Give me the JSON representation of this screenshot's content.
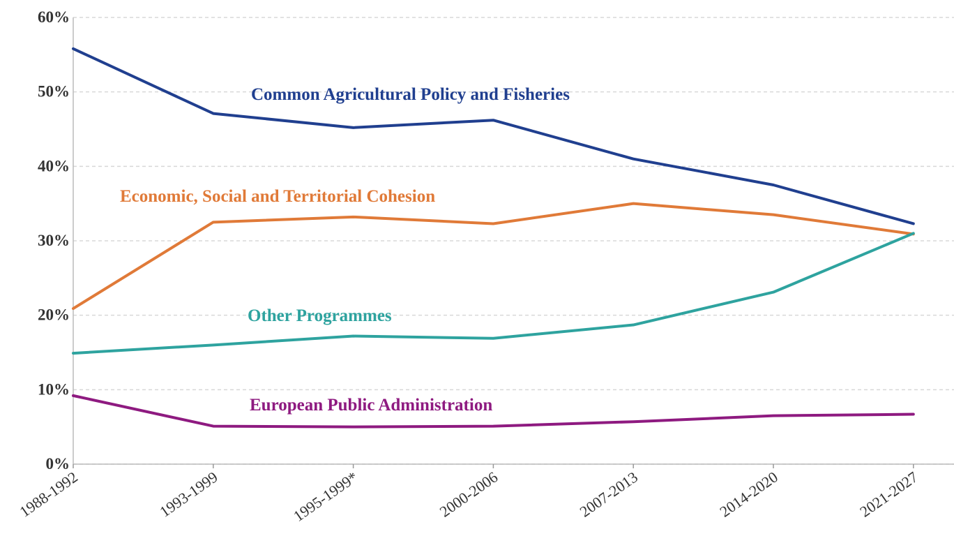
{
  "chart_data": {
    "type": "line",
    "categories": [
      "1988-1992",
      "1993-1999",
      "1995-1999*",
      "2000-2006",
      "2007-2013",
      "2014-2020",
      "2021-2027"
    ],
    "series": [
      {
        "name": "Common Agricultural Policy and Fisheries",
        "color": "#203f8f",
        "values": [
          55.8,
          47.1,
          45.2,
          46.2,
          41,
          37.5,
          32.3
        ]
      },
      {
        "name": "Economic, Social and Territorial Cohesion",
        "color": "#e07a38",
        "values": [
          20.9,
          32.5,
          33.2,
          32.3,
          35,
          33.5,
          30.9
        ]
      },
      {
        "name": "Other Programmes",
        "color": "#2ea39f",
        "values": [
          14.9,
          16,
          17.2,
          16.9,
          18.7,
          23.1,
          31
        ]
      },
      {
        "name": "European Public Administration",
        "color": "#8e1a80",
        "values": [
          9.2,
          5.1,
          5,
          5.1,
          5.7,
          6.5,
          6.7
        ]
      }
    ],
    "ylim": [
      0,
      60
    ],
    "yticks": [
      {
        "value": 0,
        "label": "0%"
      },
      {
        "value": 10,
        "label": "10%"
      },
      {
        "value": 20,
        "label": "20%"
      },
      {
        "value": 30,
        "label": "30%"
      },
      {
        "value": 40,
        "label": "40%"
      },
      {
        "value": 50,
        "label": "50%"
      },
      {
        "value": 60,
        "label": "60%"
      }
    ],
    "grid": true
  }
}
